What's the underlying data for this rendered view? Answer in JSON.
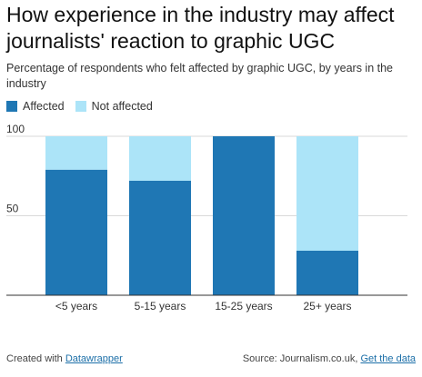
{
  "title": "How experience in the industry may affect journalists' reaction to graphic UGC",
  "subtitle": "Percentage of respondents who felt affected by graphic UGC, by years in the industry",
  "legend": [
    {
      "label": "Affected",
      "color": "#1f77b4"
    },
    {
      "label": "Not affected",
      "color": "#ace4f8"
    }
  ],
  "chart_data": {
    "type": "bar",
    "stacked": true,
    "categories": [
      "<5 years",
      "5-15 years",
      "15-25 years",
      "25+ years"
    ],
    "series": [
      {
        "name": "Affected",
        "values": [
          79,
          72,
          100,
          28
        ],
        "color": "#1f77b4"
      },
      {
        "name": "Not affected",
        "values": [
          21,
          28,
          0,
          72
        ],
        "color": "#ace4f8"
      }
    ],
    "yticks": [
      100,
      50
    ],
    "ylim": [
      0,
      100
    ],
    "grid": true,
    "legend_position": "top-left"
  },
  "footer": {
    "created_prefix": "Created with ",
    "created_link": "Datawrapper",
    "source_prefix": "Source: Journalism.co.uk, ",
    "source_link": "Get the data"
  }
}
